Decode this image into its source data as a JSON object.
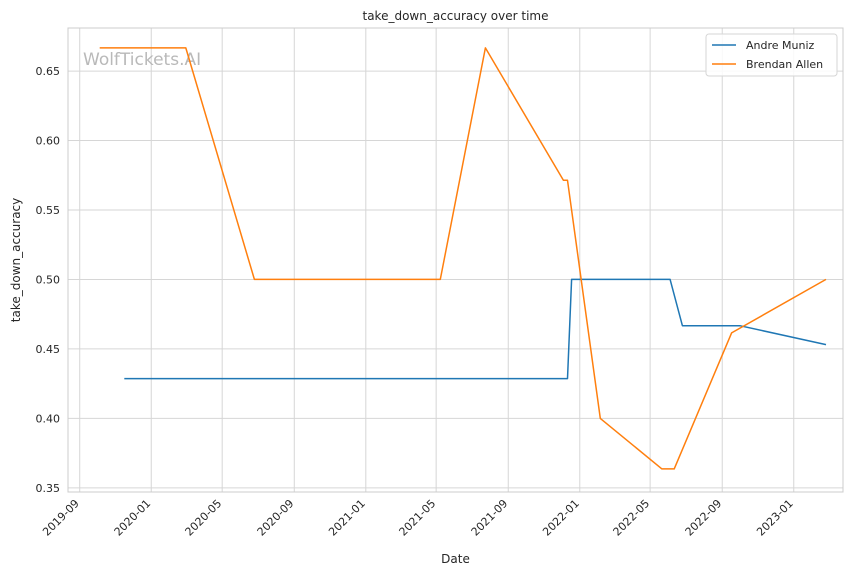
{
  "watermark": "WolfTickets.AI",
  "chart_data": {
    "type": "line",
    "title": "take_down_accuracy over time",
    "xlabel": "Date",
    "ylabel": "take_down_accuracy",
    "x_type": "date",
    "xlim": [
      "2019-08-12",
      "2023-03-26"
    ],
    "ylim": [
      0.347,
      0.681
    ],
    "x_ticks": [
      "2019-09",
      "2020-01",
      "2020-05",
      "2020-09",
      "2021-01",
      "2021-05",
      "2021-09",
      "2022-01",
      "2022-05",
      "2022-09",
      "2023-01"
    ],
    "y_ticks": [
      0.35,
      0.4,
      0.45,
      0.5,
      0.55,
      0.6,
      0.65
    ],
    "grid": true,
    "legend_position": "top-right",
    "series": [
      {
        "name": "Andre Muniz",
        "color": "#1f77b4",
        "points": [
          {
            "x": "2019-11-16",
            "y": 0.4286
          },
          {
            "x": "2021-12-11",
            "y": 0.4286
          },
          {
            "x": "2021-12-18",
            "y": 0.5
          },
          {
            "x": "2022-06-04",
            "y": 0.5
          },
          {
            "x": "2022-06-25",
            "y": 0.4667
          },
          {
            "x": "2022-10-01",
            "y": 0.4667
          },
          {
            "x": "2023-02-25",
            "y": 0.4531
          }
        ]
      },
      {
        "name": "Brendan Allen",
        "color": "#ff7f0e",
        "points": [
          {
            "x": "2019-10-05",
            "y": 0.6667
          },
          {
            "x": "2020-02-29",
            "y": 0.6667
          },
          {
            "x": "2020-06-25",
            "y": 0.5
          },
          {
            "x": "2021-05-08",
            "y": 0.5
          },
          {
            "x": "2021-07-24",
            "y": 0.6667
          },
          {
            "x": "2021-12-04",
            "y": 0.5714
          },
          {
            "x": "2021-12-11",
            "y": 0.5714
          },
          {
            "x": "2022-02-05",
            "y": 0.4
          },
          {
            "x": "2022-05-21",
            "y": 0.3636
          },
          {
            "x": "2022-06-11",
            "y": 0.3636
          },
          {
            "x": "2022-09-17",
            "y": 0.4615
          },
          {
            "x": "2023-02-25",
            "y": 0.5
          }
        ]
      }
    ]
  }
}
